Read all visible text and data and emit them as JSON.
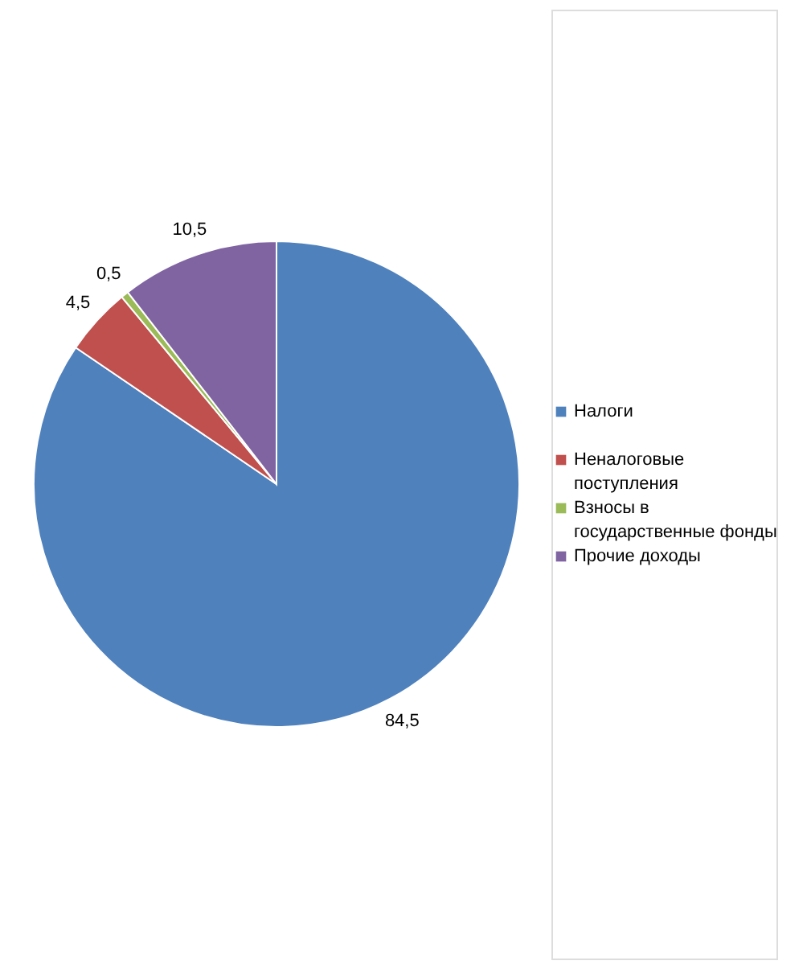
{
  "chart_data": {
    "type": "pie",
    "categories": [
      "Налоги",
      "Неналоговые поступления",
      "Взносы в государственные фонды",
      "Прочие доходы"
    ],
    "values": [
      84.5,
      4.5,
      0.5,
      10.5
    ],
    "colors": [
      "#4f81bd",
      "#c0504d",
      "#9bbb59",
      "#8064a2"
    ],
    "value_labels": [
      "84,5",
      "4,5",
      "0,5",
      "10,5"
    ],
    "legend": "right"
  }
}
